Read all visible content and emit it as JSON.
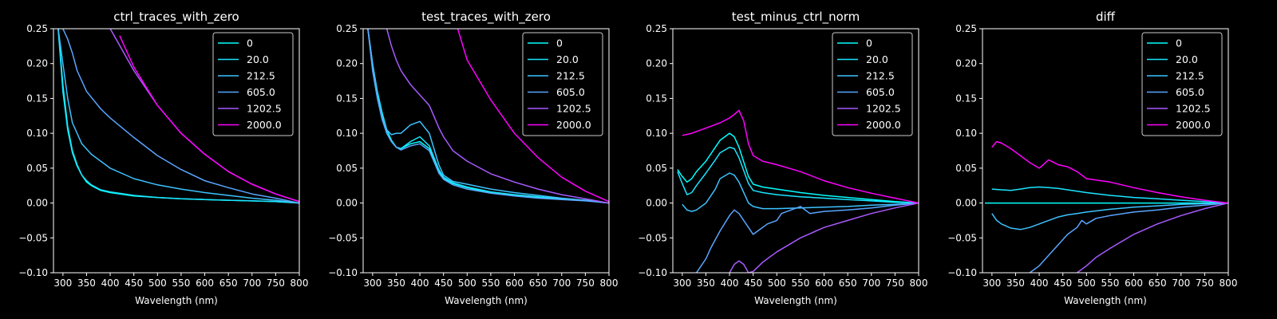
{
  "colors": {
    "background": "#000000",
    "axes": "#ffffff",
    "series": [
      "#00ffff",
      "#1ae5ff",
      "#3dc2ff",
      "#5aa5ff",
      "#a85aff",
      "#ff00ff"
    ]
  },
  "chart_data": [
    {
      "type": "line",
      "title": "ctrl_traces_with_zero",
      "xlabel": "Wavelength (nm)",
      "ylabel": "",
      "xlim": [
        280,
        800
      ],
      "ylim": [
        -0.1,
        0.25
      ],
      "xticks": [
        "300",
        "350",
        "400",
        "450",
        "500",
        "550",
        "600",
        "650",
        "700",
        "750",
        "800"
      ],
      "yticks": [
        "−0.10",
        "−0.05",
        "0.00",
        "0.05",
        "0.10",
        "0.15",
        "0.20",
        "0.25"
      ],
      "legend": "top-right",
      "grid": false,
      "series": [
        {
          "name": "0",
          "x": [
            290,
            300,
            310,
            320,
            330,
            340,
            350,
            360,
            380,
            400,
            450,
            500,
            550,
            600,
            650,
            700,
            750,
            800
          ],
          "y": [
            0.25,
            0.17,
            0.11,
            0.075,
            0.055,
            0.04,
            0.03,
            0.025,
            0.018,
            0.015,
            0.01,
            0.008,
            0.006,
            0.005,
            0.004,
            0.003,
            0.002,
            0.0
          ]
        },
        {
          "name": "20.0",
          "x": [
            290,
            300,
            310,
            320,
            330,
            340,
            350,
            360,
            380,
            400,
            450,
            500,
            550,
            600,
            650,
            700,
            750,
            800
          ],
          "y": [
            0.25,
            0.16,
            0.105,
            0.072,
            0.053,
            0.04,
            0.032,
            0.026,
            0.019,
            0.016,
            0.011,
            0.008,
            0.006,
            0.005,
            0.004,
            0.003,
            0.002,
            0.0
          ]
        },
        {
          "name": "212.5",
          "x": [
            290,
            300,
            310,
            320,
            340,
            360,
            380,
            400,
            450,
            500,
            550,
            600,
            650,
            700,
            750,
            800
          ],
          "y": [
            0.25,
            0.2,
            0.15,
            0.115,
            0.085,
            0.07,
            0.06,
            0.05,
            0.035,
            0.026,
            0.02,
            0.015,
            0.011,
            0.007,
            0.004,
            0.0
          ]
        },
        {
          "name": "605.0",
          "x": [
            300,
            310,
            320,
            330,
            350,
            380,
            400,
            450,
            500,
            550,
            600,
            650,
            700,
            750,
            800
          ],
          "y": [
            0.25,
            0.235,
            0.215,
            0.19,
            0.16,
            0.135,
            0.122,
            0.094,
            0.068,
            0.048,
            0.032,
            0.022,
            0.013,
            0.007,
            0.0
          ]
        },
        {
          "name": "1202.5",
          "x": [
            400,
            450,
            500,
            550,
            600,
            650,
            700,
            750,
            800
          ],
          "y": [
            0.25,
            0.19,
            0.14,
            0.1,
            0.07,
            0.045,
            0.027,
            0.013,
            0.002
          ]
        },
        {
          "name": "2000.0",
          "x": [
            420,
            450,
            500,
            550,
            600,
            650,
            700,
            750,
            800
          ],
          "y": [
            0.24,
            0.195,
            0.14,
            0.1,
            0.07,
            0.045,
            0.027,
            0.013,
            0.002
          ]
        }
      ]
    },
    {
      "type": "line",
      "title": "test_traces_with_zero",
      "xlabel": "Wavelength (nm)",
      "ylabel": "",
      "xlim": [
        280,
        800
      ],
      "ylim": [
        -0.1,
        0.25
      ],
      "xticks": [
        "300",
        "350",
        "400",
        "450",
        "500",
        "550",
        "600",
        "650",
        "700",
        "750",
        "800"
      ],
      "yticks": [
        "−0.10",
        "−0.05",
        "0.00",
        "0.05",
        "0.10",
        "0.15",
        "0.20",
        "0.25"
      ],
      "legend": "top-right",
      "grid": false,
      "series": [
        {
          "name": "0",
          "x": [
            290,
            300,
            310,
            320,
            330,
            340,
            350,
            360,
            380,
            400,
            420,
            440,
            450,
            470,
            500,
            550,
            600,
            650,
            700,
            750,
            800
          ],
          "y": [
            0.25,
            0.2,
            0.16,
            0.13,
            0.105,
            0.09,
            0.08,
            0.078,
            0.085,
            0.088,
            0.078,
            0.045,
            0.035,
            0.028,
            0.022,
            0.015,
            0.011,
            0.008,
            0.006,
            0.004,
            0.0
          ]
        },
        {
          "name": "20.0",
          "x": [
            290,
            300,
            310,
            320,
            330,
            340,
            350,
            360,
            380,
            400,
            420,
            440,
            450,
            470,
            500,
            550,
            600,
            650,
            700,
            750,
            800
          ],
          "y": [
            0.25,
            0.2,
            0.155,
            0.125,
            0.1,
            0.088,
            0.08,
            0.078,
            0.088,
            0.095,
            0.082,
            0.048,
            0.037,
            0.029,
            0.023,
            0.016,
            0.012,
            0.009,
            0.006,
            0.004,
            0.0
          ]
        },
        {
          "name": "212.5",
          "x": [
            290,
            300,
            310,
            320,
            330,
            340,
            350,
            360,
            380,
            400,
            420,
            440,
            450,
            470,
            500,
            550,
            600,
            650,
            700,
            750,
            800
          ],
          "y": [
            0.25,
            0.2,
            0.155,
            0.125,
            0.105,
            0.098,
            0.1,
            0.1,
            0.112,
            0.117,
            0.1,
            0.055,
            0.04,
            0.031,
            0.027,
            0.02,
            0.015,
            0.011,
            0.007,
            0.004,
            0.0
          ]
        },
        {
          "name": "605.0",
          "x": [
            290,
            300,
            310,
            320,
            330,
            340,
            350,
            360,
            380,
            400,
            420,
            440,
            450,
            470,
            500,
            550,
            600,
            650,
            700,
            750,
            800
          ],
          "y": [
            0.25,
            0.19,
            0.15,
            0.12,
            0.1,
            0.088,
            0.08,
            0.076,
            0.082,
            0.085,
            0.075,
            0.043,
            0.034,
            0.026,
            0.02,
            0.014,
            0.01,
            0.007,
            0.005,
            0.003,
            0.0
          ]
        },
        {
          "name": "1202.5",
          "x": [
            330,
            340,
            350,
            360,
            380,
            400,
            420,
            440,
            450,
            470,
            500,
            550,
            600,
            650,
            700,
            750,
            800
          ],
          "y": [
            0.25,
            0.225,
            0.205,
            0.19,
            0.17,
            0.155,
            0.14,
            0.108,
            0.095,
            0.075,
            0.06,
            0.042,
            0.03,
            0.02,
            0.012,
            0.006,
            0.0
          ]
        },
        {
          "name": "2000.0",
          "x": [
            480,
            500,
            550,
            600,
            650,
            700,
            750,
            800
          ],
          "y": [
            0.25,
            0.205,
            0.148,
            0.1,
            0.065,
            0.037,
            0.017,
            0.002
          ]
        }
      ]
    },
    {
      "type": "line",
      "title": "test_minus_ctrl_norm",
      "xlabel": "Wavelength (nm)",
      "ylabel": "",
      "xlim": [
        280,
        800
      ],
      "ylim": [
        -0.1,
        0.25
      ],
      "xticks": [
        "300",
        "350",
        "400",
        "450",
        "500",
        "550",
        "600",
        "650",
        "700",
        "750",
        "800"
      ],
      "yticks": [
        "−0.10",
        "−0.05",
        "0.00",
        "0.05",
        "0.10",
        "0.15",
        "0.20",
        "0.25"
      ],
      "legend": "top-right",
      "grid": false,
      "series": [
        {
          "name": "0",
          "x": [
            290,
            300,
            310,
            320,
            330,
            350,
            370,
            380,
            400,
            410,
            420,
            440,
            450,
            470,
            500,
            550,
            600,
            650,
            700,
            750,
            800
          ],
          "y": [
            0.048,
            0.038,
            0.03,
            0.035,
            0.045,
            0.06,
            0.08,
            0.09,
            0.1,
            0.095,
            0.08,
            0.038,
            0.027,
            0.023,
            0.02,
            0.015,
            0.011,
            0.008,
            0.005,
            0.002,
            0.0
          ]
        },
        {
          "name": "20.0",
          "x": [
            290,
            300,
            310,
            320,
            330,
            350,
            370,
            380,
            400,
            410,
            420,
            440,
            450,
            470,
            500,
            550,
            600,
            650,
            700,
            750,
            800
          ],
          "y": [
            0.045,
            0.028,
            0.012,
            0.015,
            0.025,
            0.043,
            0.062,
            0.072,
            0.08,
            0.078,
            0.065,
            0.028,
            0.018,
            0.015,
            0.012,
            0.009,
            0.007,
            0.005,
            0.003,
            0.001,
            0.0
          ]
        },
        {
          "name": "212.5",
          "x": [
            300,
            310,
            320,
            330,
            350,
            370,
            380,
            400,
            410,
            420,
            440,
            450,
            470,
            500,
            550,
            600,
            650,
            700,
            750,
            800
          ],
          "y": [
            -0.002,
            -0.01,
            -0.012,
            -0.01,
            0.0,
            0.02,
            0.035,
            0.043,
            0.04,
            0.03,
            0.0,
            -0.005,
            -0.008,
            -0.008,
            -0.007,
            -0.006,
            -0.005,
            -0.003,
            -0.002,
            0.0
          ]
        },
        {
          "name": "605.0",
          "x": [
            330,
            340,
            350,
            360,
            380,
            400,
            410,
            420,
            440,
            450,
            460,
            480,
            500,
            510,
            530,
            550,
            570,
            600,
            650,
            700,
            750,
            800
          ],
          "y": [
            -0.1,
            -0.09,
            -0.08,
            -0.065,
            -0.04,
            -0.018,
            -0.01,
            -0.015,
            -0.035,
            -0.045,
            -0.04,
            -0.03,
            -0.025,
            -0.015,
            -0.01,
            -0.005,
            -0.015,
            -0.012,
            -0.01,
            -0.007,
            -0.003,
            0.0
          ]
        },
        {
          "name": "1202.5",
          "x": [
            400,
            410,
            420,
            430,
            440,
            450,
            470,
            500,
            550,
            600,
            650,
            700,
            750,
            800
          ],
          "y": [
            -0.1,
            -0.088,
            -0.083,
            -0.088,
            -0.1,
            -0.098,
            -0.085,
            -0.07,
            -0.05,
            -0.035,
            -0.025,
            -0.015,
            -0.007,
            0.0
          ]
        },
        {
          "name": "2000.0",
          "x": [
            300,
            320,
            340,
            360,
            380,
            400,
            410,
            420,
            430,
            440,
            450,
            470,
            500,
            550,
            600,
            650,
            700,
            750,
            800
          ],
          "y": [
            0.097,
            0.1,
            0.105,
            0.11,
            0.115,
            0.122,
            0.127,
            0.133,
            0.118,
            0.085,
            0.068,
            0.06,
            0.055,
            0.045,
            0.032,
            0.022,
            0.014,
            0.007,
            0.0
          ]
        }
      ]
    },
    {
      "type": "line",
      "title": "diff",
      "xlabel": "Wavelength (nm)",
      "ylabel": "",
      "xlim": [
        280,
        800
      ],
      "ylim": [
        -0.1,
        0.25
      ],
      "xticks": [
        "300",
        "350",
        "400",
        "450",
        "500",
        "550",
        "600",
        "650",
        "700",
        "750",
        "800"
      ],
      "yticks": [
        "−0.10",
        "−0.05",
        "0.00",
        "0.05",
        "0.10",
        "0.15",
        "0.20",
        "0.25"
      ],
      "legend": "top-right",
      "grid": false,
      "series": [
        {
          "name": "0",
          "x": [
            285,
            800
          ],
          "y": [
            0.0,
            0.0
          ]
        },
        {
          "name": "20.0",
          "x": [
            300,
            320,
            340,
            360,
            380,
            400,
            420,
            440,
            460,
            480,
            500,
            550,
            600,
            650,
            700,
            750,
            800
          ],
          "y": [
            0.02,
            0.019,
            0.018,
            0.02,
            0.022,
            0.023,
            0.022,
            0.021,
            0.019,
            0.017,
            0.015,
            0.011,
            0.008,
            0.006,
            0.004,
            0.002,
            0.0
          ]
        },
        {
          "name": "212.5",
          "x": [
            300,
            310,
            320,
            330,
            340,
            350,
            360,
            380,
            400,
            420,
            440,
            460,
            480,
            500,
            550,
            600,
            650,
            700,
            750,
            800
          ],
          "y": [
            -0.015,
            -0.025,
            -0.03,
            -0.033,
            -0.036,
            -0.037,
            -0.038,
            -0.035,
            -0.03,
            -0.025,
            -0.02,
            -0.017,
            -0.015,
            -0.013,
            -0.009,
            -0.006,
            -0.004,
            -0.002,
            -0.001,
            0.0
          ]
        },
        {
          "name": "605.0",
          "x": [
            380,
            400,
            420,
            440,
            460,
            480,
            490,
            500,
            520,
            550,
            600,
            650,
            700,
            750,
            800
          ],
          "y": [
            -0.1,
            -0.09,
            -0.075,
            -0.06,
            -0.045,
            -0.035,
            -0.025,
            -0.03,
            -0.022,
            -0.018,
            -0.013,
            -0.01,
            -0.006,
            -0.003,
            0.0
          ]
        },
        {
          "name": "1202.5",
          "x": [
            480,
            500,
            520,
            550,
            600,
            650,
            700,
            750,
            800
          ],
          "y": [
            -0.1,
            -0.09,
            -0.078,
            -0.065,
            -0.045,
            -0.03,
            -0.018,
            -0.008,
            0.0
          ]
        },
        {
          "name": "2000.0",
          "x": [
            300,
            310,
            320,
            340,
            360,
            380,
            400,
            420,
            440,
            460,
            480,
            500,
            550,
            600,
            650,
            700,
            750,
            800
          ],
          "y": [
            0.08,
            0.088,
            0.086,
            0.078,
            0.068,
            0.058,
            0.05,
            0.062,
            0.055,
            0.052,
            0.045,
            0.035,
            0.03,
            0.022,
            0.015,
            0.009,
            0.004,
            0.0
          ]
        }
      ]
    }
  ]
}
